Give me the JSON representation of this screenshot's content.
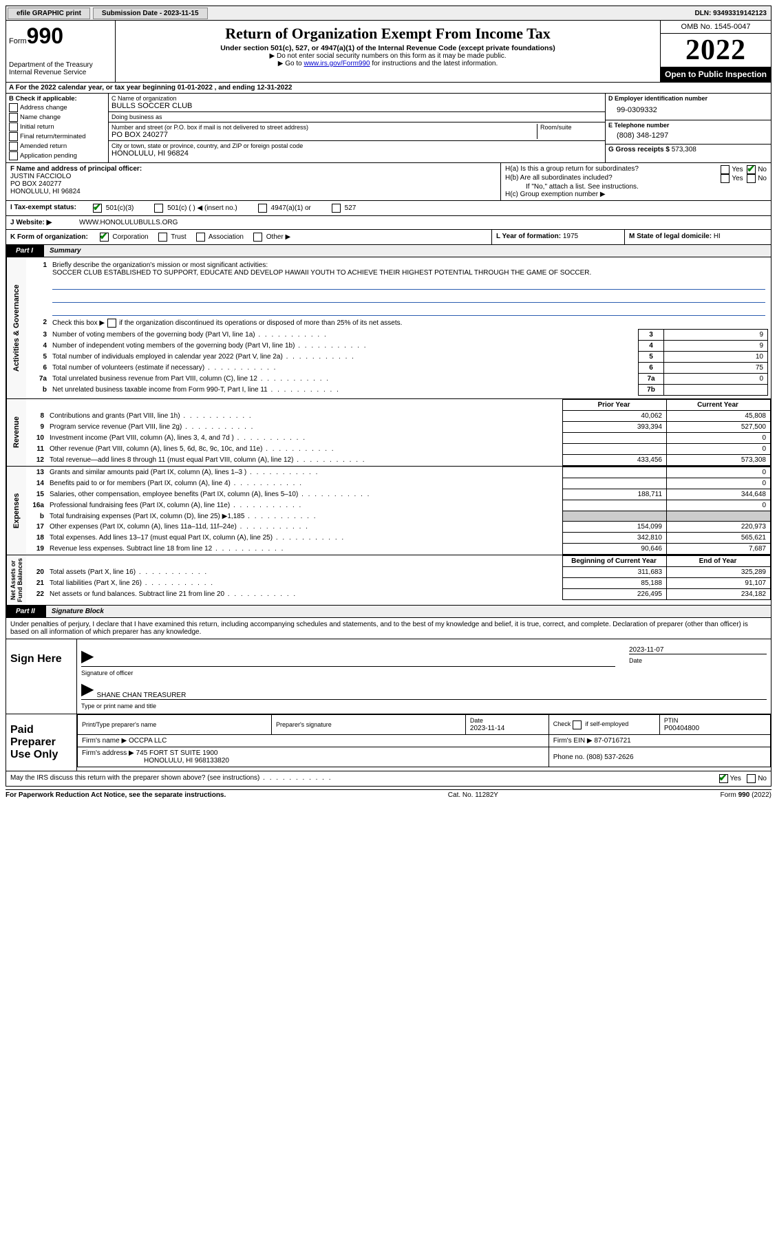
{
  "colors": {
    "link": "#0000cc",
    "check": "#008000",
    "bar": "#000000",
    "shade": "#cccccc",
    "bluehr": "#2a5db0"
  },
  "topbar": {
    "efile": "efile GRAPHIC print",
    "submission": "Submission Date - 2023-11-15",
    "dln": "DLN: 93493319142123"
  },
  "header": {
    "form_label": "Form",
    "form_num": "990",
    "title": "Return of Organization Exempt From Income Tax",
    "sub1": "Under section 501(c), 527, or 4947(a)(1) of the Internal Revenue Code (except private foundations)",
    "sub2": "▶ Do not enter social security numbers on this form as it may be made public.",
    "sub3_prefix": "▶ Go to ",
    "sub3_link": "www.irs.gov/Form990",
    "sub3_suffix": " for instructions and the latest information.",
    "dept": "Department of the Treasury\nInternal Revenue Service",
    "omb": "OMB No. 1545-0047",
    "year": "2022",
    "open": "Open to Public Inspection"
  },
  "A": {
    "text": "A For the 2022 calendar year, or tax year beginning 01-01-2022    , and ending 12-31-2022"
  },
  "B": {
    "label": "B Check if applicable:",
    "items": [
      "Address change",
      "Name change",
      "Initial return",
      "Final return/terminated",
      "Amended return",
      "Application pending"
    ]
  },
  "C": {
    "name_label": "C Name of organization",
    "name": "BULLS SOCCER CLUB",
    "dba_label": "Doing business as",
    "dba": "",
    "addr_label": "Number and street (or P.O. box if mail is not delivered to street address)",
    "room_label": "Room/suite",
    "addr": "PO BOX 240277",
    "city_label": "City or town, state or province, country, and ZIP or foreign postal code",
    "city": "HONOLULU, HI  96824"
  },
  "D": {
    "label": "D Employer identification number",
    "val": "99-0309332"
  },
  "E": {
    "label": "E Telephone number",
    "val": "(808) 348-1297"
  },
  "G": {
    "label": "G Gross receipts $",
    "val": "573,308"
  },
  "F": {
    "label": "F  Name and address of principal officer:",
    "name": "JUSTIN FACCIOLO",
    "addr1": "PO BOX 240277",
    "addr2": "HONOLULU, HI  96824"
  },
  "H": {
    "a": "H(a)  Is this a group return for subordinates?",
    "b": "H(b)  Are all subordinates included?",
    "b_note": "If \"No,\" attach a list. See instructions.",
    "c": "H(c)  Group exemption number ▶",
    "yes": "Yes",
    "no": "No"
  },
  "I": {
    "label": "I   Tax-exempt status:",
    "opts": [
      "501(c)(3)",
      "501(c) (  ) ◀ (insert no.)",
      "4947(a)(1) or",
      "527"
    ]
  },
  "J": {
    "label": "J  Website: ▶",
    "val": "WWW.HONOLULUBULLS.ORG"
  },
  "K": {
    "label": "K Form of organization:",
    "opts": [
      "Corporation",
      "Trust",
      "Association",
      "Other ▶"
    ]
  },
  "L": {
    "label": "L Year of formation: ",
    "val": "1975"
  },
  "M": {
    "label": "M State of legal domicile: ",
    "val": "HI"
  },
  "part1": {
    "tag": "Part I",
    "title": "Summary"
  },
  "summary": {
    "line1_label": "Briefly describe the organization's mission or most significant activities:",
    "line1_text": "SOCCER CLUB ESTABLISHED TO SUPPORT, EDUCATE AND DEVELOP HAWAII YOUTH TO ACHIEVE THEIR HIGHEST POTENTIAL THROUGH THE GAME OF SOCCER.",
    "line2": "Check this box ▶        if the organization discontinued its operations or disposed of more than 25% of its net assets.",
    "gov_label": "Activities & Governance",
    "rows_top": [
      {
        "n": "3",
        "t": "Number of voting members of the governing body (Part VI, line 1a)",
        "box": "3",
        "v": "9"
      },
      {
        "n": "4",
        "t": "Number of independent voting members of the governing body (Part VI, line 1b)",
        "box": "4",
        "v": "9"
      },
      {
        "n": "5",
        "t": "Total number of individuals employed in calendar year 2022 (Part V, line 2a)",
        "box": "5",
        "v": "10"
      },
      {
        "n": "6",
        "t": "Total number of volunteers (estimate if necessary)",
        "box": "6",
        "v": "75"
      },
      {
        "n": "7a",
        "t": "Total unrelated business revenue from Part VIII, column (C), line 12",
        "box": "7a",
        "v": "0"
      },
      {
        "n": "b",
        "t": "Net unrelated business taxable income from Form 990-T, Part I, line 11",
        "box": "7b",
        "v": ""
      }
    ],
    "col_prior": "Prior Year",
    "col_current": "Current Year",
    "rev_label": "Revenue",
    "rev_rows": [
      {
        "n": "8",
        "t": "Contributions and grants (Part VIII, line 1h)",
        "p": "40,062",
        "c": "45,808"
      },
      {
        "n": "9",
        "t": "Program service revenue (Part VIII, line 2g)",
        "p": "393,394",
        "c": "527,500"
      },
      {
        "n": "10",
        "t": "Investment income (Part VIII, column (A), lines 3, 4, and 7d )",
        "p": "",
        "c": "0"
      },
      {
        "n": "11",
        "t": "Other revenue (Part VIII, column (A), lines 5, 6d, 8c, 9c, 10c, and 11e)",
        "p": "",
        "c": "0"
      },
      {
        "n": "12",
        "t": "Total revenue—add lines 8 through 11 (must equal Part VIII, column (A), line 12)",
        "p": "433,456",
        "c": "573,308"
      }
    ],
    "exp_label": "Expenses",
    "exp_rows": [
      {
        "n": "13",
        "t": "Grants and similar amounts paid (Part IX, column (A), lines 1–3 )",
        "p": "",
        "c": "0"
      },
      {
        "n": "14",
        "t": "Benefits paid to or for members (Part IX, column (A), line 4)",
        "p": "",
        "c": "0"
      },
      {
        "n": "15",
        "t": "Salaries, other compensation, employee benefits (Part IX, column (A), lines 5–10)",
        "p": "188,711",
        "c": "344,648"
      },
      {
        "n": "16a",
        "t": "Professional fundraising fees (Part IX, column (A), line 11e)",
        "p": "",
        "c": "0"
      },
      {
        "n": "b",
        "t": "Total fundraising expenses (Part IX, column (D), line 25) ▶1,185",
        "p": "SHADE",
        "c": "SHADE"
      },
      {
        "n": "17",
        "t": "Other expenses (Part IX, column (A), lines 11a–11d, 11f–24e)",
        "p": "154,099",
        "c": "220,973"
      },
      {
        "n": "18",
        "t": "Total expenses. Add lines 13–17 (must equal Part IX, column (A), line 25)",
        "p": "342,810",
        "c": "565,621"
      },
      {
        "n": "19",
        "t": "Revenue less expenses. Subtract line 18 from line 12",
        "p": "90,646",
        "c": "7,687"
      }
    ],
    "net_label": "Net Assets or\nFund Balances",
    "col_begin": "Beginning of Current Year",
    "col_end": "End of Year",
    "net_rows": [
      {
        "n": "20",
        "t": "Total assets (Part X, line 16)",
        "p": "311,683",
        "c": "325,289"
      },
      {
        "n": "21",
        "t": "Total liabilities (Part X, line 26)",
        "p": "85,188",
        "c": "91,107"
      },
      {
        "n": "22",
        "t": "Net assets or fund balances. Subtract line 21 from line 20",
        "p": "226,495",
        "c": "234,182"
      }
    ]
  },
  "part2": {
    "tag": "Part II",
    "title": "Signature Block"
  },
  "sig": {
    "declaration": "Under penalties of perjury, I declare that I have examined this return, including accompanying schedules and statements, and to the best of my knowledge and belief, it is true, correct, and complete. Declaration of preparer (other than officer) is based on all information of which preparer has any knowledge.",
    "sign_here": "Sign Here",
    "officer_sig": "Signature of officer",
    "officer_date": "2023-11-07",
    "officer_name": "SHANE CHAN  TREASURER",
    "officer_name_label": "Type or print name and title",
    "date_label": "Date"
  },
  "preparer": {
    "label": "Paid Preparer Use Only",
    "print_label": "Print/Type preparer's name",
    "sig_label": "Preparer's signature",
    "date_label": "Date",
    "date": "2023-11-14",
    "check_label": "Check         if self-employed",
    "ptin_label": "PTIN",
    "ptin": "P00404800",
    "firm_name_label": "Firm's name    ▶",
    "firm_name": "OCCPA LLC",
    "firm_ein_label": "Firm's EIN ▶",
    "firm_ein": "87-0716721",
    "firm_addr_label": "Firm's address ▶",
    "firm_addr": "745 FORT ST SUITE 1900",
    "firm_addr2": "HONOLULU, HI  968133820",
    "phone_label": "Phone no.",
    "phone": "(808) 537-2626"
  },
  "may_irs": {
    "text": "May the IRS discuss this return with the preparer shown above? (see instructions)",
    "yes": "Yes",
    "no": "No"
  },
  "footer": {
    "left": "For Paperwork Reduction Act Notice, see the separate instructions.",
    "mid": "Cat. No. 11282Y",
    "right": "Form 990 (2022)"
  }
}
